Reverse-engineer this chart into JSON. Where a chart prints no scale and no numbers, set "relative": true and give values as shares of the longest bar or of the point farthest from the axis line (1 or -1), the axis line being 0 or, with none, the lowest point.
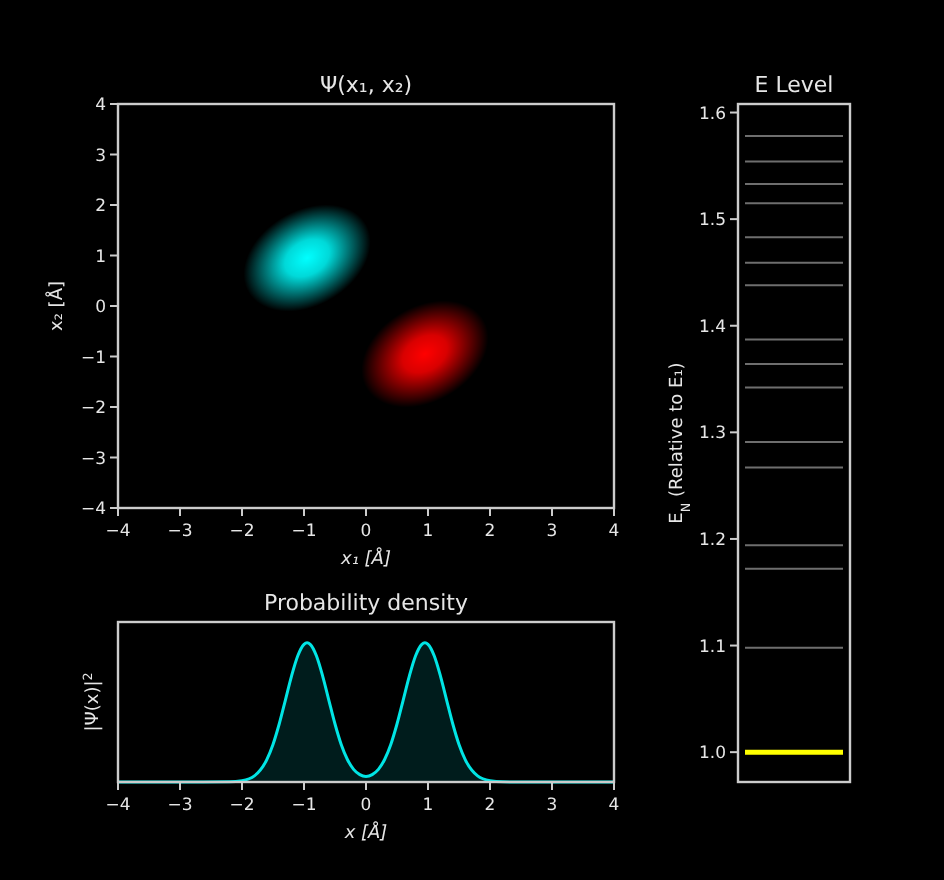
{
  "chart_data": [
    {
      "type": "scatter",
      "title": "Ψ(x₁, x₂)",
      "xlabel": "x₁ [Å]",
      "ylabel": "x₂ [Å]",
      "xlim": [
        -4,
        4
      ],
      "ylim": [
        -4,
        4
      ],
      "xticks": [
        -4,
        -3,
        -2,
        -1,
        0,
        1,
        2,
        3,
        4
      ],
      "yticks": [
        -4,
        -3,
        -2,
        -1,
        0,
        1,
        2,
        3,
        4
      ],
      "series": [
        {
          "color": "#00ffff",
          "x": [
            -0.95
          ],
          "values": [
            0.95
          ]
        },
        {
          "color": "#ff0000",
          "x": [
            0.95
          ],
          "values": [
            -0.95
          ]
        }
      ]
    },
    {
      "type": "line",
      "title": "E Level",
      "ylabel": "E$_{N}$ (Relative to E₁)",
      "categories": [
        null,
        null,
        null,
        null,
        null,
        null,
        null,
        null
      ],
      "ylim": [
        0.972,
        1.608
      ],
      "yticks": [
        {
          "value": 1.0,
          "label": "1.0"
        },
        {
          "value": 1.1,
          "label": "1.1"
        },
        {
          "value": 1.2,
          "label": "1.2"
        },
        {
          "value": 1.3,
          "label": "1.3"
        },
        {
          "value": 1.4,
          "label": "1.4"
        },
        {
          "value": 1.5,
          "label": "1.5"
        },
        {
          "value": 1.6,
          "label": "1.6"
        }
      ],
      "tick_labels": "y",
      "series": [
        {
          "color": "#ffff00",
          "values": [
            1.0,
            1.0,
            1.0,
            1.0,
            1.0,
            1.0,
            1.0,
            1.0
          ]
        },
        {
          "color": "#6e6e6e",
          "values": [
            1.098,
            1.098,
            1.098,
            1.098,
            1.098,
            1.098,
            1.098,
            1.098
          ]
        },
        {
          "color": "#6e6e6e",
          "values": [
            1.172,
            1.172,
            1.172,
            1.172,
            1.172,
            1.172,
            1.172,
            1.172
          ]
        },
        {
          "color": "#6e6e6e",
          "values": [
            1.194,
            1.194,
            1.194,
            1.194,
            1.194,
            1.194,
            1.194,
            1.194
          ]
        },
        {
          "color": "#6e6e6e",
          "values": [
            1.267,
            1.267,
            1.267,
            1.267,
            1.267,
            1.267,
            1.267,
            1.267
          ]
        },
        {
          "color": "#6e6e6e",
          "values": [
            1.291,
            1.291,
            1.291,
            1.291,
            1.291,
            1.291,
            1.291,
            1.291
          ]
        },
        {
          "color": "#6e6e6e",
          "values": [
            1.342,
            1.342,
            1.342,
            1.342,
            1.342,
            1.342,
            1.342,
            1.342
          ]
        },
        {
          "color": "#6e6e6e",
          "values": [
            1.364,
            1.364,
            1.364,
            1.364,
            1.364,
            1.364,
            1.364,
            1.364
          ]
        },
        {
          "color": "#6e6e6e",
          "values": [
            1.387,
            1.387,
            1.387,
            1.387,
            1.387,
            1.387,
            1.387,
            1.387
          ]
        },
        {
          "color": "#6e6e6e",
          "values": [
            1.438,
            1.438,
            1.438,
            1.438,
            1.438,
            1.438,
            1.438,
            1.438
          ]
        },
        {
          "color": "#6e6e6e",
          "values": [
            1.459,
            1.459,
            1.459,
            1.459,
            1.459,
            1.459,
            1.459,
            1.459
          ]
        },
        {
          "color": "#6e6e6e",
          "values": [
            1.483,
            1.483,
            1.483,
            1.483,
            1.483,
            1.483,
            1.483,
            1.483
          ]
        },
        {
          "color": "#6e6e6e",
          "values": [
            1.515,
            1.515,
            1.515,
            1.515,
            1.515,
            1.515,
            1.515,
            1.515
          ]
        },
        {
          "color": "#6e6e6e",
          "values": [
            1.533,
            1.533,
            1.533,
            1.533,
            1.533,
            1.533,
            1.533,
            1.533
          ]
        },
        {
          "color": "#6e6e6e",
          "values": [
            1.554,
            1.554,
            1.554,
            1.554,
            1.554,
            1.554,
            1.554,
            1.554
          ]
        },
        {
          "color": "#6e6e6e",
          "values": [
            1.578,
            1.578,
            1.578,
            1.578,
            1.578,
            1.578,
            1.578,
            1.578
          ]
        }
      ]
    },
    {
      "type": "area",
      "title": "Probability density",
      "xlabel": "x [Å]",
      "ylabel": "|Ψ(x)|$^{2}$",
      "relative": true,
      "xlim": [
        -4,
        4
      ],
      "xticks": [
        -4,
        -3,
        -2,
        -1,
        0,
        1,
        2,
        3,
        4
      ],
      "x": [
        -4,
        -3,
        -2.2,
        -2,
        -1.8,
        -1.6,
        -1.5,
        -1.4,
        -1.3,
        -1.2,
        -1.1,
        -1,
        -0.95,
        -0.9,
        -0.8,
        -0.7,
        -0.6,
        -0.5,
        -0.4,
        -0.3,
        -0.2,
        -0.1,
        0,
        0.1,
        0.2,
        0.3,
        0.4,
        0.5,
        0.6,
        0.7,
        0.8,
        0.9,
        0.95,
        1,
        1.1,
        1.2,
        1.3,
        1.4,
        1.5,
        1.6,
        1.8,
        2,
        2.2,
        3,
        4
      ],
      "series": [
        {
          "color": "#00e5e5",
          "values": [
            0,
            0,
            0.001,
            0.009,
            0.044,
            0.161,
            0.27,
            0.417,
            0.589,
            0.763,
            0.907,
            0.989,
            1,
            0.989,
            0.907,
            0.763,
            0.589,
            0.417,
            0.27,
            0.162,
            0.091,
            0.053,
            0.04,
            0.053,
            0.091,
            0.162,
            0.27,
            0.417,
            0.589,
            0.763,
            0.907,
            0.989,
            1,
            0.989,
            0.907,
            0.763,
            0.589,
            0.417,
            0.27,
            0.161,
            0.044,
            0.009,
            0.001,
            0,
            0
          ]
        }
      ]
    }
  ]
}
